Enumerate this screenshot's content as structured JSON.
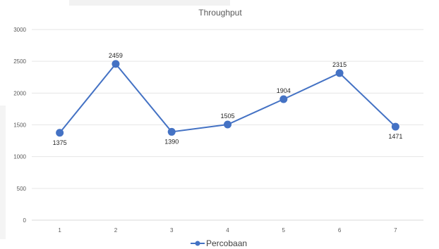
{
  "chart_data": {
    "type": "line",
    "title": "Throughput",
    "xlabel": "",
    "ylabel": "",
    "categories": [
      "1",
      "2",
      "3",
      "4",
      "5",
      "6",
      "7"
    ],
    "series": [
      {
        "name": "Percobaan",
        "values": [
          1375,
          2459,
          1390,
          1505,
          1904,
          2315,
          1471
        ],
        "data_labels": [
          "1375",
          "2459",
          "1390",
          "1505",
          "1904",
          "2315",
          "1471"
        ],
        "label_positions": [
          "below",
          "above",
          "below",
          "above",
          "above",
          "above",
          "below"
        ]
      }
    ],
    "ylim": [
      0,
      3000
    ],
    "yticks": [
      "0",
      "500",
      "1000",
      "1500",
      "2000",
      "2500",
      "3000"
    ],
    "ytick_values": [
      0,
      500,
      1000,
      1500,
      2000,
      2500,
      3000
    ],
    "grid": true,
    "legend_position": "bottom",
    "colors": {
      "series": "#4472c4",
      "grid": "#e6e6e6",
      "text": "#595959"
    }
  }
}
